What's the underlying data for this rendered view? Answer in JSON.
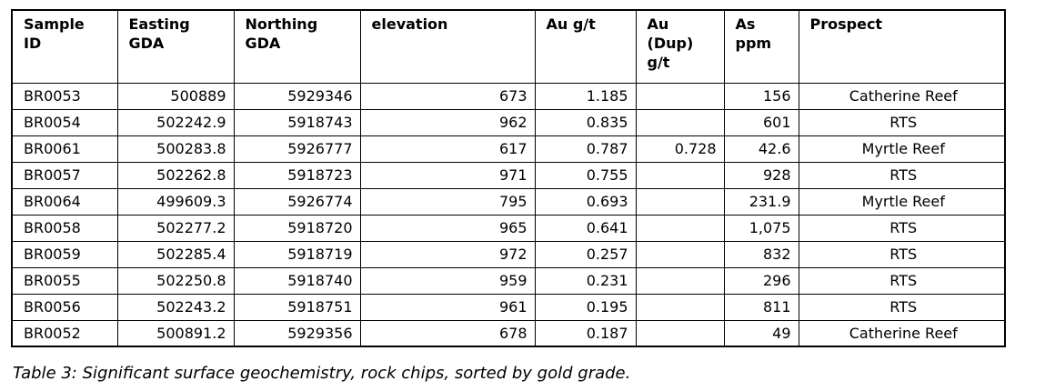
{
  "page": {
    "background_color": "#ffffff",
    "text_color": "#000000",
    "border_color": "#000000"
  },
  "table": {
    "columns": [
      {
        "key": "sample-id",
        "label": "Sample\nID",
        "align": "left"
      },
      {
        "key": "easting-gda",
        "label": "Easting\nGDA",
        "align": "right"
      },
      {
        "key": "northing-gda",
        "label": "Northing\nGDA",
        "align": "right"
      },
      {
        "key": "elevation",
        "label": "elevation",
        "align": "right"
      },
      {
        "key": "au-gpt",
        "label": "Au g/t",
        "align": "right"
      },
      {
        "key": "au-dup-gpt",
        "label": "Au\n(Dup)\ng/t",
        "align": "right"
      },
      {
        "key": "as-ppm",
        "label": "As\nppm",
        "align": "right"
      },
      {
        "key": "prospect",
        "label": "Prospect",
        "align": "center"
      }
    ],
    "rows": [
      [
        "BR0053",
        "500889",
        "5929346",
        "673",
        "1.185",
        "",
        "156",
        "Catherine Reef"
      ],
      [
        "BR0054",
        "502242.9",
        "5918743",
        "962",
        "0.835",
        "",
        "601",
        "RTS"
      ],
      [
        "BR0061",
        "500283.8",
        "5926777",
        "617",
        "0.787",
        "0.728",
        "42.6",
        "Myrtle Reef"
      ],
      [
        "BR0057",
        "502262.8",
        "5918723",
        "971",
        "0.755",
        "",
        "928",
        "RTS"
      ],
      [
        "BR0064",
        "499609.3",
        "5926774",
        "795",
        "0.693",
        "",
        "231.9",
        "Myrtle Reef"
      ],
      [
        "BR0058",
        "502277.2",
        "5918720",
        "965",
        "0.641",
        "",
        "1,075",
        "RTS"
      ],
      [
        "BR0059",
        "502285.4",
        "5918719",
        "972",
        "0.257",
        "",
        "832",
        "RTS"
      ],
      [
        "BR0055",
        "502250.8",
        "5918740",
        "959",
        "0.231",
        "",
        "296",
        "RTS"
      ],
      [
        "BR0056",
        "502243.2",
        "5918751",
        "961",
        "0.195",
        "",
        "811",
        "RTS"
      ],
      [
        "BR0052",
        "500891.2",
        "5929356",
        "678",
        "0.187",
        "",
        "49",
        "Catherine Reef"
      ]
    ]
  },
  "caption": "Table 3: Significant surface geochemistry, rock chips, sorted by gold grade."
}
